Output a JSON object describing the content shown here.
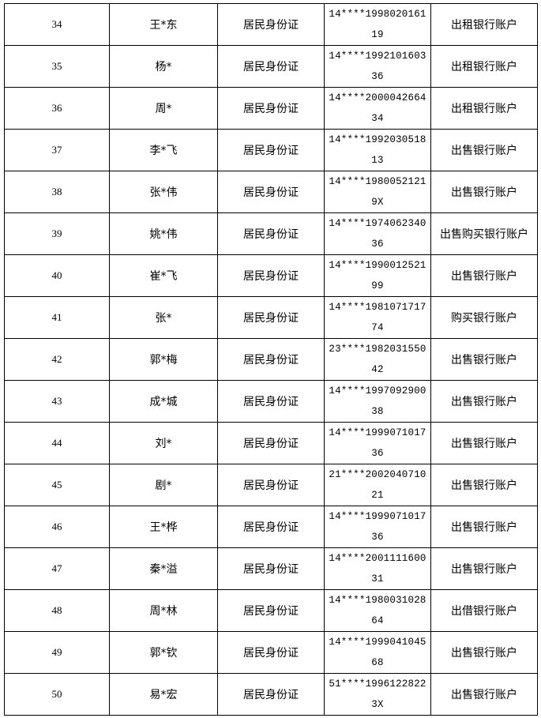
{
  "rows": [
    {
      "no": "34",
      "name": "王*东",
      "doc": "居民身份证",
      "id1": "14****1998020161",
      "id2": "19",
      "type": "出租银行账户"
    },
    {
      "no": "35",
      "name": "杨*",
      "doc": "居民身份证",
      "id1": "14****1992101603",
      "id2": "36",
      "type": "出租银行账户"
    },
    {
      "no": "36",
      "name": "周*",
      "doc": "居民身份证",
      "id1": "14****2000042664",
      "id2": "34",
      "type": "出租银行账户"
    },
    {
      "no": "37",
      "name": "李*飞",
      "doc": "居民身份证",
      "id1": "14****1992030518",
      "id2": "13",
      "type": "出售银行账户"
    },
    {
      "no": "38",
      "name": "张*伟",
      "doc": "居民身份证",
      "id1": "14****1980052121",
      "id2": "9X",
      "type": "出售银行账户"
    },
    {
      "no": "39",
      "name": "姚*伟",
      "doc": "居民身份证",
      "id1": "14****1974062340",
      "id2": "36",
      "type": "出售购买银行账户"
    },
    {
      "no": "40",
      "name": "崔*飞",
      "doc": "居民身份证",
      "id1": "14****1990012521",
      "id2": "99",
      "type": "出售银行账户"
    },
    {
      "no": "41",
      "name": "张*",
      "doc": "居民身份证",
      "id1": "14****1981071717",
      "id2": "74",
      "type": "购买银行账户"
    },
    {
      "no": "42",
      "name": "郭*梅",
      "doc": "居民身份证",
      "id1": "23****1982031550",
      "id2": "42",
      "type": "出售银行账户"
    },
    {
      "no": "43",
      "name": "成*城",
      "doc": "居民身份证",
      "id1": "14****1997092900",
      "id2": "38",
      "type": "出售银行账户"
    },
    {
      "no": "44",
      "name": "刘*",
      "doc": "居民身份证",
      "id1": "14****1999071017",
      "id2": "36",
      "type": "出售银行账户"
    },
    {
      "no": "45",
      "name": "剧*",
      "doc": "居民身份证",
      "id1": "21****2002040710",
      "id2": "21",
      "type": "出售银行账户"
    },
    {
      "no": "46",
      "name": "王*桦",
      "doc": "居民身份证",
      "id1": "14****1999071017",
      "id2": "36",
      "type": "出售银行账户"
    },
    {
      "no": "47",
      "name": "秦*溢",
      "doc": "居民身份证",
      "id1": "14****2001111600",
      "id2": "31",
      "type": "出售银行账户"
    },
    {
      "no": "48",
      "name": "周*林",
      "doc": "居民身份证",
      "id1": "14****1980031028",
      "id2": "64",
      "type": "出借银行账户"
    },
    {
      "no": "49",
      "name": "郭*钦",
      "doc": "居民身份证",
      "id1": "14****1999041045",
      "id2": "68",
      "type": "出售银行账户"
    },
    {
      "no": "50",
      "name": "易*宏",
      "doc": "居民身份证",
      "id1": "51****1996122822",
      "id2": "3X",
      "type": "出售银行账户"
    }
  ]
}
